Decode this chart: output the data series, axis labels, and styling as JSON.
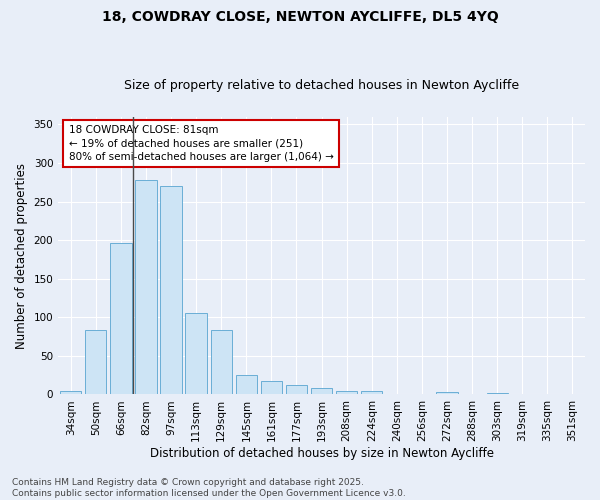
{
  "title_line1": "18, COWDRAY CLOSE, NEWTON AYCLIFFE, DL5 4YQ",
  "title_line2": "Size of property relative to detached houses in Newton Aycliffe",
  "xlabel": "Distribution of detached houses by size in Newton Aycliffe",
  "ylabel": "Number of detached properties",
  "categories": [
    "34sqm",
    "50sqm",
    "66sqm",
    "82sqm",
    "97sqm",
    "113sqm",
    "129sqm",
    "145sqm",
    "161sqm",
    "177sqm",
    "193sqm",
    "208sqm",
    "224sqm",
    "240sqm",
    "256sqm",
    "272sqm",
    "288sqm",
    "303sqm",
    "319sqm",
    "335sqm",
    "351sqm"
  ],
  "values": [
    5,
    83,
    196,
    278,
    270,
    105,
    83,
    25,
    18,
    12,
    8,
    5,
    5,
    0,
    0,
    3,
    0,
    2,
    0,
    0,
    0
  ],
  "bar_color": "#cde4f5",
  "bar_edge_color": "#6aaed6",
  "vline_color": "#4a4a4a",
  "annotation_text": "18 COWDRAY CLOSE: 81sqm\n← 19% of detached houses are smaller (251)\n80% of semi-detached houses are larger (1,064) →",
  "annotation_box_color": "#ffffff",
  "annotation_box_edge_color": "#cc0000",
  "ylim": [
    0,
    360
  ],
  "yticks": [
    0,
    50,
    100,
    150,
    200,
    250,
    300,
    350
  ],
  "bg_color": "#e8eef8",
  "plot_bg_color": "#e8eef8",
  "footer_text": "Contains HM Land Registry data © Crown copyright and database right 2025.\nContains public sector information licensed under the Open Government Licence v3.0.",
  "title_fontsize": 10,
  "subtitle_fontsize": 9,
  "axis_label_fontsize": 8.5,
  "tick_fontsize": 7.5,
  "annotation_fontsize": 7.5,
  "footer_fontsize": 6.5
}
